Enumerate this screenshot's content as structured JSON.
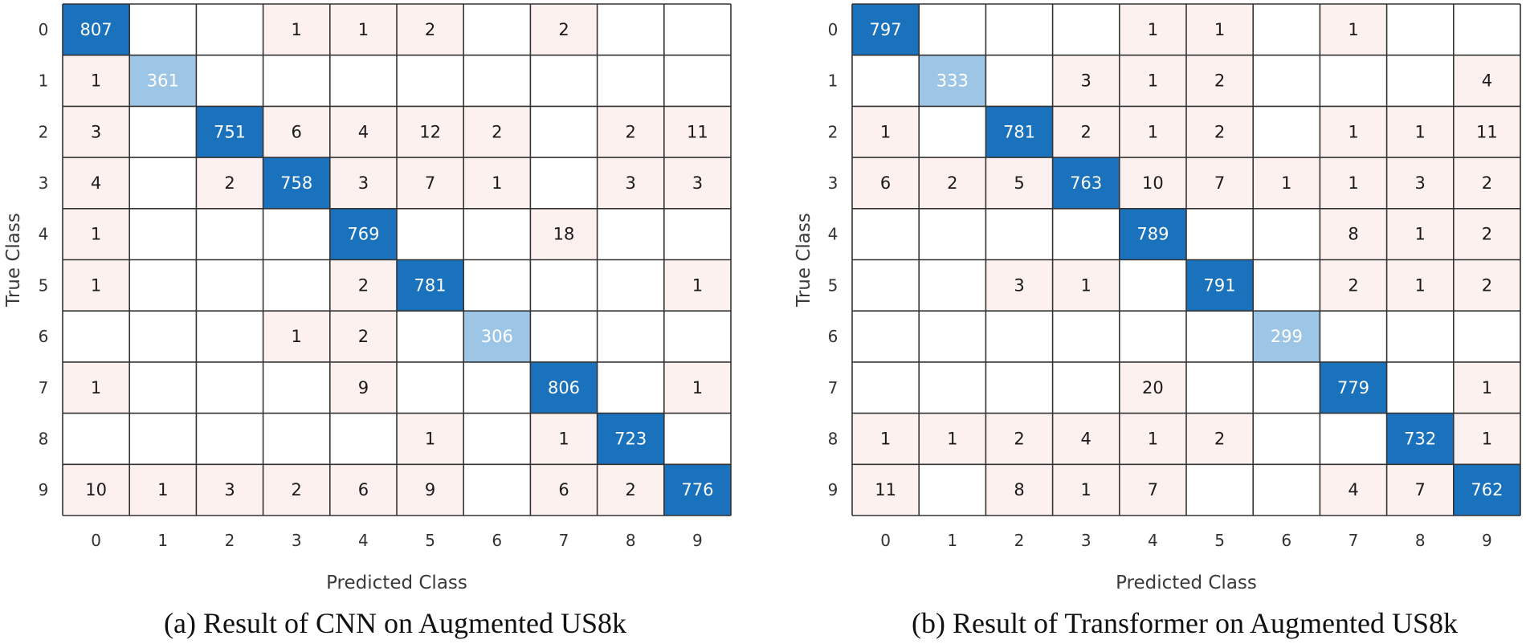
{
  "chart_data": [
    {
      "type": "heatmap",
      "caption": "(a) Result of CNN on Augmented US8k",
      "xlabel": "Predicted Class",
      "ylabel": "True Class",
      "x_categories": [
        "0",
        "1",
        "2",
        "3",
        "4",
        "5",
        "6",
        "7",
        "8",
        "9"
      ],
      "y_categories": [
        "0",
        "1",
        "2",
        "3",
        "4",
        "5",
        "6",
        "7",
        "8",
        "9"
      ],
      "matrix": [
        [
          807,
          null,
          null,
          1,
          1,
          2,
          null,
          2,
          null,
          null
        ],
        [
          1,
          361,
          null,
          null,
          null,
          null,
          null,
          null,
          null,
          null
        ],
        [
          3,
          null,
          751,
          6,
          4,
          12,
          2,
          null,
          2,
          11
        ],
        [
          4,
          null,
          2,
          758,
          3,
          7,
          1,
          null,
          3,
          3
        ],
        [
          1,
          null,
          null,
          null,
          769,
          null,
          null,
          18,
          null,
          null
        ],
        [
          1,
          null,
          null,
          null,
          2,
          781,
          null,
          null,
          null,
          1
        ],
        [
          null,
          null,
          null,
          1,
          2,
          null,
          306,
          null,
          null,
          null
        ],
        [
          1,
          null,
          null,
          null,
          9,
          null,
          null,
          806,
          null,
          1
        ],
        [
          null,
          null,
          null,
          null,
          null,
          1,
          null,
          1,
          723,
          null
        ],
        [
          10,
          1,
          3,
          2,
          6,
          9,
          null,
          6,
          2,
          776
        ]
      ]
    },
    {
      "type": "heatmap",
      "caption": "(b) Result of Transformer on Augmented US8k",
      "xlabel": "Predicted Class",
      "ylabel": "True Class",
      "x_categories": [
        "0",
        "1",
        "2",
        "3",
        "4",
        "5",
        "6",
        "7",
        "8",
        "9"
      ],
      "y_categories": [
        "0",
        "1",
        "2",
        "3",
        "4",
        "5",
        "6",
        "7",
        "8",
        "9"
      ],
      "matrix": [
        [
          797,
          null,
          null,
          null,
          1,
          1,
          null,
          1,
          null,
          null
        ],
        [
          null,
          333,
          null,
          3,
          1,
          2,
          null,
          null,
          null,
          4
        ],
        [
          1,
          null,
          781,
          2,
          1,
          2,
          null,
          1,
          1,
          11
        ],
        [
          6,
          2,
          5,
          763,
          10,
          7,
          1,
          1,
          3,
          2
        ],
        [
          null,
          null,
          null,
          null,
          789,
          null,
          null,
          8,
          1,
          2
        ],
        [
          null,
          null,
          3,
          1,
          null,
          791,
          null,
          2,
          1,
          2
        ],
        [
          null,
          null,
          null,
          null,
          null,
          null,
          299,
          null,
          null,
          null
        ],
        [
          null,
          null,
          null,
          null,
          20,
          null,
          null,
          779,
          null,
          1
        ],
        [
          1,
          1,
          2,
          4,
          1,
          2,
          null,
          null,
          732,
          1
        ],
        [
          11,
          null,
          8,
          1,
          7,
          null,
          null,
          4,
          7,
          762
        ]
      ]
    }
  ],
  "colors": {
    "diag_dark": "#1a72bd",
    "diag_light": "#9dc6e6",
    "offdiag": "#fdf1ef",
    "empty": "#ffffff",
    "grid": "#333333",
    "diag_text": "#ffffff",
    "offdiag_text": "#1a1a1a"
  },
  "diag_light_threshold": 500
}
